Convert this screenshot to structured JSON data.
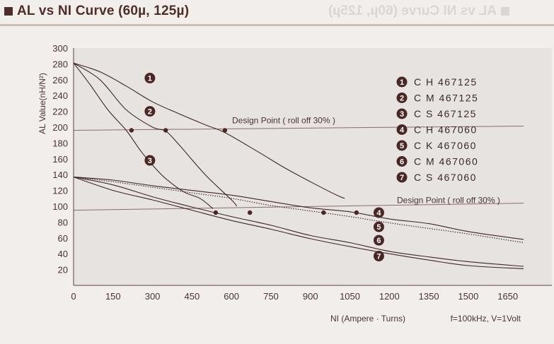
{
  "page": {
    "title": "AL vs NI Curve (60µ, 125µ)",
    "ghost_title": "AL vs NI Curve (60µ, 125µ)"
  },
  "chart_data": {
    "type": "line",
    "title": "AL vs NI Curve (60µ, 125µ)",
    "xlabel": "NI (Ampere · Turns)",
    "ylabel": "AL Value(nH/N²)",
    "note": "f=100kHz, V=1Volt",
    "xlim": [
      0,
      1710
    ],
    "ylim": [
      0,
      300
    ],
    "x_ticks": [
      0,
      150,
      300,
      450,
      600,
      750,
      900,
      1050,
      1200,
      1350,
      1500,
      1650
    ],
    "y_ticks": [
      20,
      40,
      60,
      80,
      100,
      120,
      140,
      160,
      180,
      200,
      220,
      240,
      260,
      280,
      300
    ],
    "grid": false,
    "legend_position": "top-right",
    "colors": {
      "curve": "#3e2826",
      "marker": "#4a2724",
      "background": "#f1eeec",
      "plot_bg": "#e6e3e1",
      "reference": "#8a6e6a"
    },
    "reference_lines": [
      {
        "y": 196,
        "label": "Design Point ( roll off 30% )"
      },
      {
        "y": 95,
        "label": "Design Point ( roll off 30% )"
      }
    ],
    "series": [
      {
        "name": "C H 467125",
        "marker": "1",
        "style": "solid",
        "x": [
          0,
          100,
          200,
          300,
          400,
          500,
          575,
          700,
          800,
          900,
          1000,
          1030
        ],
        "y": [
          281,
          270,
          252,
          232,
          217,
          203,
          193,
          169,
          149,
          131,
          114,
          110
        ]
      },
      {
        "name": "C M 467125",
        "marker": "2",
        "style": "solid",
        "x": [
          0,
          100,
          200,
          300,
          350,
          400,
          500,
          600,
          620
        ],
        "y": [
          281,
          260,
          222,
          200,
          195,
          178,
          140,
          108,
          100
        ]
      },
      {
        "name": "C S 467125",
        "marker": "3",
        "style": "solid",
        "x": [
          0,
          60,
          130,
          200,
          255,
          300,
          350,
          420,
          480,
          530
        ],
        "y": [
          281,
          255,
          222,
          196,
          170,
          152,
          135,
          118,
          110,
          97
        ]
      },
      {
        "name": "C H 467060",
        "marker": "4",
        "style": "solid",
        "x": [
          0,
          150,
          300,
          450,
          600,
          750,
          900,
          1050,
          1200,
          1350,
          1500,
          1710
        ],
        "y": [
          137,
          133,
          126,
          120,
          114,
          106,
          98,
          93,
          84,
          78,
          68,
          58
        ]
      },
      {
        "name": "C K 467060",
        "marker": "5",
        "style": "dotted",
        "x": [
          0,
          150,
          300,
          450,
          600,
          750,
          900,
          1050,
          1200,
          1350,
          1500,
          1710
        ],
        "y": [
          137,
          131,
          124,
          117,
          110,
          101,
          94,
          87,
          79,
          72,
          65,
          54
        ]
      },
      {
        "name": "C M 467060",
        "marker": "6",
        "style": "solid",
        "x": [
          0,
          150,
          300,
          450,
          600,
          750,
          900,
          1050,
          1200,
          1350,
          1500,
          1710
        ],
        "y": [
          137,
          127,
          112,
          99,
          87,
          76,
          63,
          54,
          43,
          36,
          30,
          24
        ]
      },
      {
        "name": "C S 467060",
        "marker": "7",
        "style": "solid",
        "x": [
          0,
          150,
          300,
          450,
          600,
          750,
          900,
          1050,
          1200,
          1350,
          1500,
          1710
        ],
        "y": [
          137,
          120,
          108,
          95,
          82,
          71,
          59,
          49,
          40,
          32,
          25,
          21
        ]
      }
    ],
    "design_points": [
      {
        "x": 575,
        "y": 196
      },
      {
        "x": 350,
        "y": 196
      },
      {
        "x": 220,
        "y": 196
      },
      {
        "x": 1075,
        "y": 92
      },
      {
        "x": 950,
        "y": 92
      },
      {
        "x": 670,
        "y": 92
      },
      {
        "x": 540,
        "y": 92
      }
    ],
    "curve_markers": [
      {
        "num": "1",
        "x": 290,
        "y": 262
      },
      {
        "num": "2",
        "x": 290,
        "y": 220
      },
      {
        "num": "3",
        "x": 290,
        "y": 158
      },
      {
        "num": "4",
        "x": 1160,
        "y": 92
      },
      {
        "num": "5",
        "x": 1160,
        "y": 74
      },
      {
        "num": "6",
        "x": 1160,
        "y": 57
      },
      {
        "num": "7",
        "x": 1160,
        "y": 37
      }
    ]
  }
}
